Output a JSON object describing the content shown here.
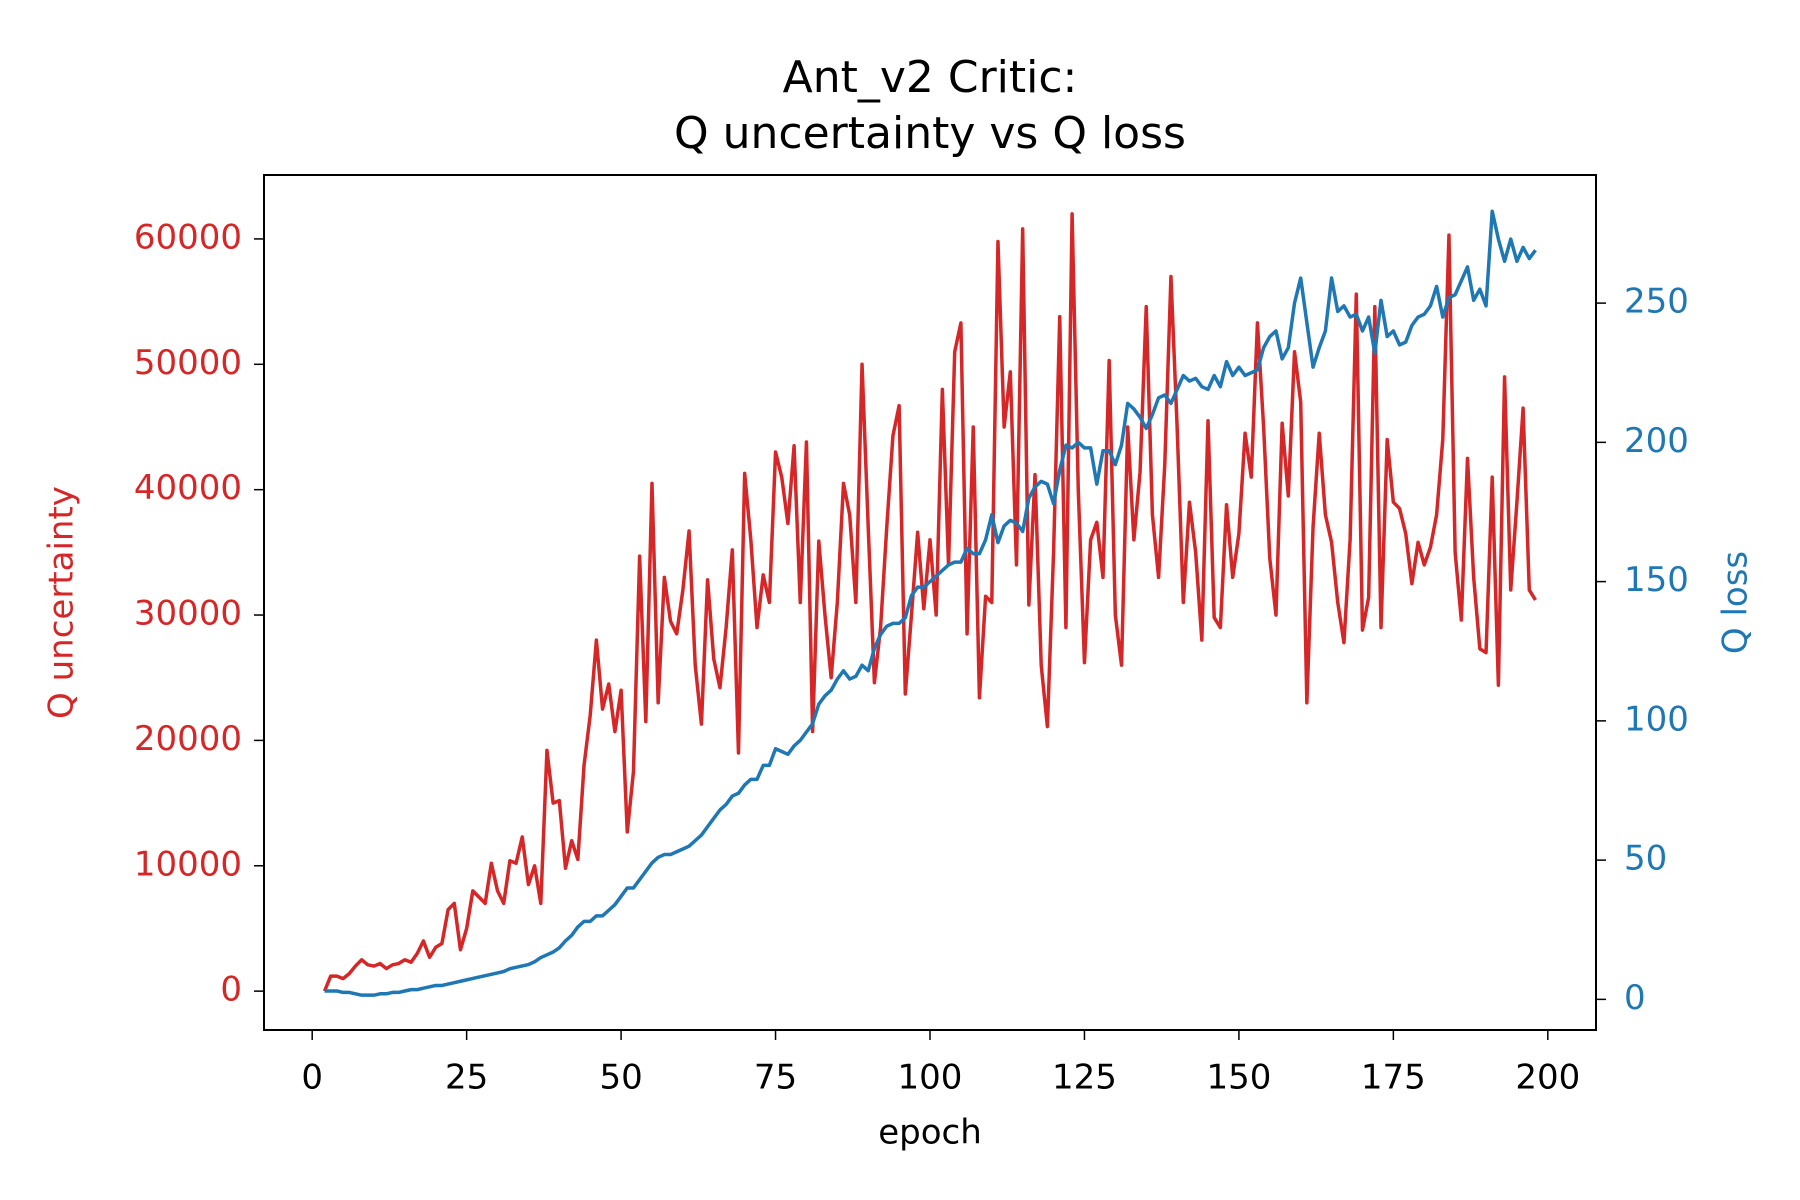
{
  "chart_data": {
    "type": "line",
    "title": "Ant_v2 Critic:\nQ uncertainty vs Q loss",
    "xlabel": "epoch",
    "ylabel": "Q uncertainty",
    "y2label": "Q loss",
    "x": [
      2,
      3,
      4,
      5,
      6,
      7,
      8,
      9,
      10,
      11,
      12,
      13,
      14,
      15,
      16,
      17,
      18,
      19,
      20,
      21,
      22,
      23,
      24,
      25,
      26,
      27,
      28,
      29,
      30,
      31,
      32,
      33,
      34,
      35,
      36,
      37,
      38,
      39,
      40,
      41,
      42,
      43,
      44,
      45,
      46,
      47,
      48,
      49,
      50,
      51,
      52,
      53,
      54,
      55,
      56,
      57,
      58,
      59,
      60,
      61,
      62,
      63,
      64,
      65,
      66,
      67,
      68,
      69,
      70,
      71,
      72,
      73,
      74,
      75,
      76,
      77,
      78,
      79,
      80,
      81,
      82,
      83,
      84,
      85,
      86,
      87,
      88,
      89,
      90,
      91,
      92,
      93,
      94,
      95,
      96,
      97,
      98,
      99,
      100,
      101,
      102,
      103,
      104,
      105,
      106,
      107,
      108,
      109,
      110,
      111,
      112,
      113,
      114,
      115,
      116,
      117,
      118,
      119,
      120,
      121,
      122,
      123,
      124,
      125,
      126,
      127,
      128,
      129,
      130,
      131,
      132,
      133,
      134,
      135,
      136,
      137,
      138,
      139,
      140,
      141,
      142,
      143,
      144,
      145,
      146,
      147,
      148,
      149,
      150,
      151,
      152,
      153,
      154,
      155,
      156,
      157,
      158,
      159,
      160,
      161,
      162,
      163,
      164,
      165,
      166,
      167,
      168,
      169,
      170,
      171,
      172,
      173,
      174,
      175,
      176,
      177,
      178,
      179,
      180,
      181,
      182,
      183,
      184,
      185,
      186,
      187,
      188,
      189,
      190,
      191,
      192,
      193,
      194,
      195,
      196,
      197,
      198
    ],
    "series": [
      {
        "color": "#d62728",
        "values": [
          0,
          1200,
          1200,
          1000,
          1400,
          2000,
          2500,
          2100,
          2000,
          2200,
          1800,
          2100,
          2200,
          2500,
          2300,
          3000,
          4000,
          2700,
          3500,
          3800,
          6500,
          7000,
          3300,
          5000,
          8000,
          7500,
          7000,
          10200,
          8000,
          7000,
          10400,
          10200,
          12300,
          8500,
          10000,
          7000,
          19200,
          15000,
          15200,
          9800,
          12000,
          10500,
          18000,
          22000,
          28000,
          22500,
          24500,
          20700,
          24000,
          12700,
          17500,
          34700,
          21500,
          40500,
          23000,
          33000,
          29500,
          28500,
          32000,
          36700,
          26000,
          21300,
          32800,
          26500,
          24200,
          29000,
          35200,
          19000,
          41300,
          36000,
          29000,
          33200,
          31000,
          43000,
          41000,
          37300,
          43500,
          31000,
          43800,
          20700,
          35900,
          30000,
          25000,
          31000,
          40500,
          38000,
          31000,
          50000,
          37000,
          24600,
          29000,
          37000,
          44300,
          46700,
          23700,
          30000,
          36600,
          30500,
          36000,
          30000,
          48000,
          34000,
          51000,
          53300,
          28500,
          45000,
          23400,
          31500,
          31000,
          59800,
          45000,
          49400,
          34000,
          60800,
          30800,
          41200,
          26000,
          21100,
          35000,
          53800,
          29000,
          62000,
          40000,
          26200,
          36000,
          37400,
          33000,
          50300,
          30000,
          26000,
          45000,
          36000,
          41400,
          54600,
          38000,
          33000,
          42000,
          57000,
          45000,
          31000,
          39000,
          35000,
          28000,
          45500,
          29800,
          29000,
          38800,
          33000,
          36500,
          44500,
          41000,
          53300,
          45000,
          34500,
          30000,
          45300,
          39500,
          51000,
          47000,
          23000,
          37000,
          44500,
          38000,
          35800,
          31000,
          27800,
          36000,
          55600,
          28800,
          31400,
          54600,
          29000,
          44000,
          39000,
          38500,
          36500,
          32500,
          35800,
          34000,
          35400,
          38000,
          44000,
          60300,
          35000,
          29600,
          42500,
          33000,
          27300,
          27000,
          41000,
          24400,
          49000,
          32000,
          39000,
          46500,
          32000,
          31200
        ]
      },
      {
        "color": "#1f77b4",
        "axis": "y2",
        "values": [
          3,
          3,
          3,
          2.5,
          2.5,
          2,
          1.5,
          1.5,
          1.5,
          2,
          2,
          2.5,
          2.5,
          3,
          3.5,
          3.5,
          4,
          4.5,
          5,
          5,
          5.5,
          6,
          6.5,
          7,
          7.5,
          8,
          8.5,
          9,
          9.5,
          10,
          11,
          11.5,
          12,
          12.5,
          13.5,
          15,
          16,
          17,
          18.5,
          21,
          23,
          26,
          28,
          28,
          30,
          30,
          32,
          34,
          37,
          40,
          40,
          43,
          46,
          49,
          51,
          52,
          52,
          53,
          54,
          55,
          57,
          59,
          62,
          65,
          68,
          70,
          73,
          74,
          77,
          79,
          79,
          84,
          84,
          90,
          89,
          88,
          91,
          93,
          96,
          99,
          106,
          109,
          111,
          115,
          118,
          115,
          116,
          120,
          118,
          126,
          131,
          134,
          135,
          135,
          137,
          145,
          148,
          148,
          150,
          152,
          154,
          156,
          157,
          157,
          162,
          160,
          160,
          165,
          174,
          164,
          170,
          172,
          171,
          168,
          180,
          184,
          186,
          185,
          178,
          190,
          199,
          198,
          200,
          198,
          198,
          185,
          197,
          197,
          192,
          199,
          214,
          212,
          209,
          205,
          210,
          216,
          217,
          214,
          219,
          224,
          222,
          223,
          220,
          219,
          224,
          220,
          229,
          224,
          227,
          224,
          225,
          226,
          234,
          238,
          240,
          230,
          234,
          250,
          259,
          243,
          227,
          234,
          240,
          259,
          247,
          249,
          245,
          246,
          240,
          245,
          232,
          251,
          238,
          240,
          235,
          236,
          242,
          245,
          246,
          249,
          256,
          245,
          252,
          253,
          258,
          263,
          251,
          255,
          249,
          283,
          273,
          265,
          273,
          265,
          270,
          266,
          269
        ]
      }
    ],
    "xlim": [
      -7.8,
      207.8
    ],
    "ylim": [
      -3100,
      65100
    ],
    "y2lim": [
      -11,
      296
    ],
    "xticks": [
      0,
      25,
      50,
      75,
      100,
      125,
      150,
      175,
      200
    ],
    "yticks": [
      0,
      10000,
      20000,
      30000,
      40000,
      50000,
      60000
    ],
    "y2ticks": [
      0,
      50,
      100,
      150,
      200,
      250
    ]
  }
}
